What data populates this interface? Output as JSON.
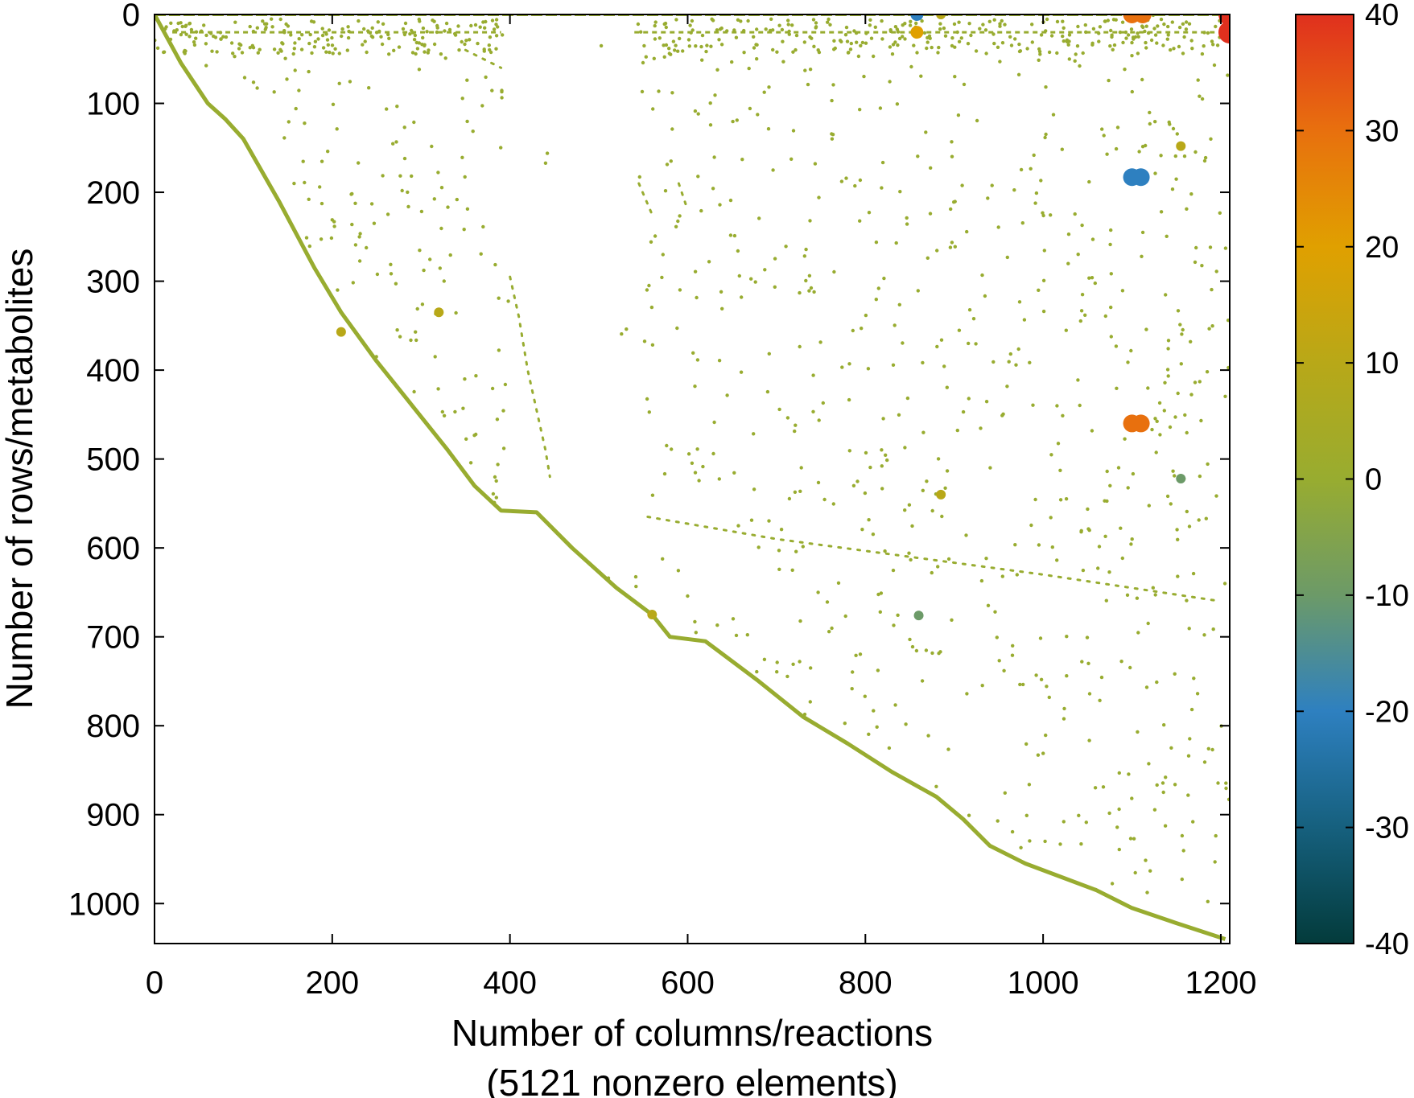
{
  "chart_data": {
    "type": "scatter",
    "subtype": "sparsity-pattern",
    "xlabel": "Number of columns/reactions",
    "xlabel_line2": "(5121 nonzero elements)",
    "ylabel": "Number of rows/metabolites",
    "xlim": [
      0,
      1210
    ],
    "ylim": [
      1045,
      0
    ],
    "y_inverted": true,
    "xticks": [
      0,
      200,
      400,
      600,
      800,
      1000,
      1200
    ],
    "xtick_labels": [
      "0",
      "200",
      "400",
      "600",
      "800",
      "1000",
      "1200"
    ],
    "yticks": [
      0,
      100,
      200,
      300,
      400,
      500,
      600,
      700,
      800,
      900,
      1000
    ],
    "ytick_labels": [
      "0",
      "100",
      "200",
      "300",
      "400",
      "500",
      "600",
      "700",
      "800",
      "900",
      "1000"
    ],
    "grid": false,
    "colorbar": {
      "range": [
        -40,
        40
      ],
      "ticks": [
        40,
        30,
        20,
        10,
        0,
        -10,
        -20,
        -30,
        -40
      ],
      "tick_labels": [
        "40",
        "30",
        "20",
        "10",
        "0",
        "-10",
        "-20",
        "-30",
        "-40"
      ],
      "colors": [
        {
          "v": 40,
          "c": "#e0301e"
        },
        {
          "v": 30,
          "c": "#e8700e"
        },
        {
          "v": 20,
          "c": "#e0a000"
        },
        {
          "v": 10,
          "c": "#b8a818"
        },
        {
          "v": 0,
          "c": "#98ac30"
        },
        {
          "v": -10,
          "c": "#6c9a68"
        },
        {
          "v": -20,
          "c": "#2e80c0"
        },
        {
          "v": -30,
          "c": "#16607e"
        },
        {
          "v": -40,
          "c": "#033b3b"
        }
      ]
    },
    "point_color": "#98ac30",
    "diagonal": [
      [
        0,
        0
      ],
      [
        30,
        55
      ],
      [
        60,
        100
      ],
      [
        80,
        118
      ],
      [
        100,
        140
      ],
      [
        140,
        210
      ],
      [
        180,
        285
      ],
      [
        210,
        335
      ],
      [
        250,
        390
      ],
      [
        290,
        440
      ],
      [
        330,
        490
      ],
      [
        360,
        530
      ],
      [
        390,
        558
      ],
      [
        430,
        560
      ],
      [
        470,
        600
      ],
      [
        520,
        645
      ],
      [
        560,
        675
      ],
      [
        580,
        700
      ],
      [
        620,
        705
      ],
      [
        680,
        750
      ],
      [
        730,
        790
      ],
      [
        780,
        820
      ],
      [
        830,
        852
      ],
      [
        880,
        880
      ],
      [
        910,
        905
      ],
      [
        940,
        935
      ],
      [
        980,
        955
      ],
      [
        1060,
        985
      ],
      [
        1100,
        1005
      ],
      [
        1150,
        1022
      ],
      [
        1205,
        1040
      ]
    ],
    "secondary_bands": [
      [
        [
          400,
          295
        ],
        [
          410,
          340
        ],
        [
          420,
          400
        ],
        [
          440,
          490
        ],
        [
          445,
          520
        ]
      ],
      [
        [
          350,
          40
        ],
        [
          390,
          60
        ]
      ],
      [
        [
          545,
          190
        ],
        [
          560,
          225
        ]
      ],
      [
        [
          590,
          190
        ],
        [
          600,
          220
        ]
      ],
      [
        [
          555,
          565
        ],
        [
          700,
          590
        ],
        [
          850,
          610
        ],
        [
          1000,
          630
        ],
        [
          1200,
          660
        ]
      ]
    ],
    "highlight_points": [
      {
        "x": 1210,
        "y": 0,
        "v": 38,
        "size": 14
      },
      {
        "x": 1210,
        "y": 20,
        "v": 38,
        "size": 14
      },
      {
        "x": 1100,
        "y": 0,
        "v": 25,
        "size": 11
      },
      {
        "x": 1112,
        "y": 0,
        "v": 25,
        "size": 11
      },
      {
        "x": 1100,
        "y": 183,
        "v": -22,
        "size": 11
      },
      {
        "x": 1110,
        "y": 183,
        "v": -22,
        "size": 11
      },
      {
        "x": 1100,
        "y": 460,
        "v": 25,
        "size": 11
      },
      {
        "x": 1110,
        "y": 460,
        "v": 25,
        "size": 11
      },
      {
        "x": 858,
        "y": 0,
        "v": -20,
        "size": 8
      },
      {
        "x": 858,
        "y": 20,
        "v": 18,
        "size": 8
      },
      {
        "x": 885,
        "y": 0,
        "v": 10,
        "size": 6
      },
      {
        "x": 1155,
        "y": 148,
        "v": 10,
        "size": 6
      },
      {
        "x": 1155,
        "y": 522,
        "v": -8,
        "size": 6
      },
      {
        "x": 885,
        "y": 540,
        "v": 10,
        "size": 6
      },
      {
        "x": 860,
        "y": 676,
        "v": -12,
        "size": 6
      },
      {
        "x": 320,
        "y": 335,
        "v": 12,
        "size": 6
      },
      {
        "x": 210,
        "y": 357,
        "v": 12,
        "size": 6
      },
      {
        "x": 560,
        "y": 675,
        "v": 8,
        "size": 6
      }
    ],
    "total_nonzeros": 5121
  }
}
